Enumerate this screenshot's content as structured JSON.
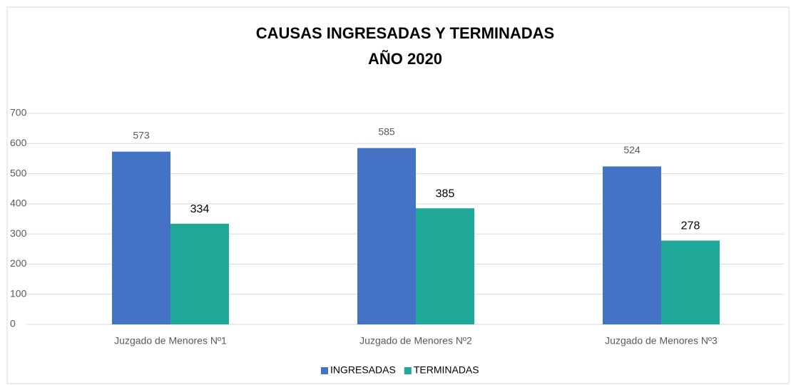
{
  "chart_data": {
    "type": "bar",
    "title": "CAUSAS INGRESADAS  Y TERMINADAS",
    "subtitle": "AÑO 2020",
    "categories": [
      "Juzgado de Menores Nº1",
      "Juzgado de Menores Nº2",
      "Juzgado de Menores Nº3"
    ],
    "series": [
      {
        "name": "INGRESADAS",
        "color": "#4472c4",
        "values": [
          573,
          585,
          524
        ]
      },
      {
        "name": "TERMINADAS",
        "color": "#1fa797",
        "values": [
          334,
          385,
          278
        ]
      }
    ],
    "ylim": [
      0,
      700
    ],
    "yticks": [
      0,
      100,
      200,
      300,
      400,
      500,
      600,
      700
    ],
    "grid": true,
    "legend": "bottom"
  }
}
